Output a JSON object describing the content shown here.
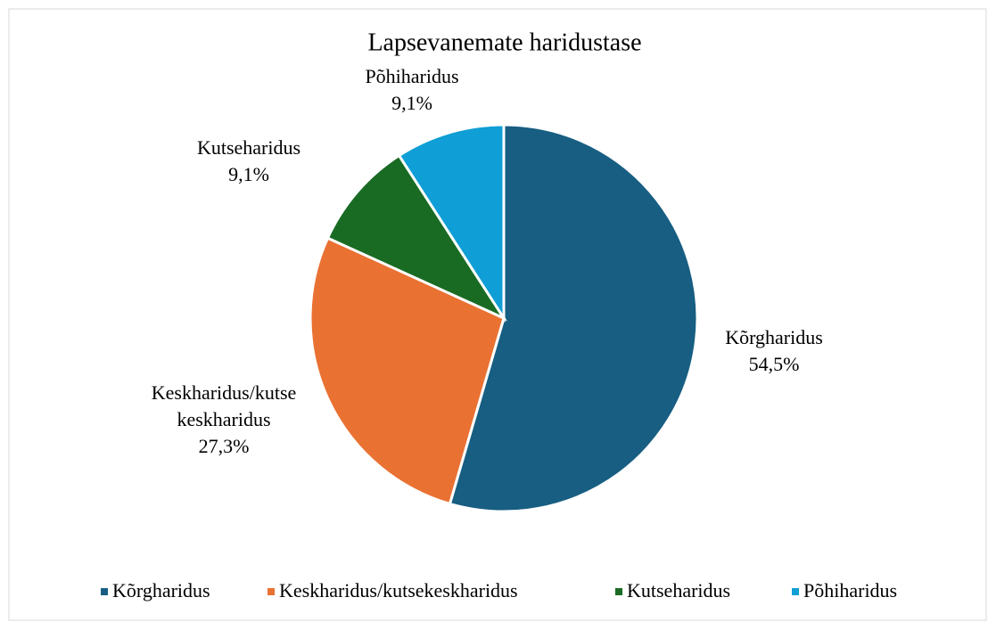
{
  "chart_data": {
    "type": "pie",
    "title": "Lapsevanemate haridustase",
    "categories": [
      "Kõrgharidus",
      "Keskharidus/kutsekeskharidus",
      "Kutseharidus",
      "Põhiharidus"
    ],
    "data_label_names": [
      "Kõrgharidus",
      "Keskharidus/kutse keskharidus",
      "Kutseharidus",
      "Põhiharidus"
    ],
    "values": [
      54.5,
      27.3,
      9.1,
      9.1
    ],
    "value_labels": [
      "54,5%",
      "27,3%",
      "9,1%",
      "9,1%"
    ],
    "colors": [
      "#175e82",
      "#e97132",
      "#196b24",
      "#0f9ed5"
    ],
    "legend": "bottom"
  }
}
